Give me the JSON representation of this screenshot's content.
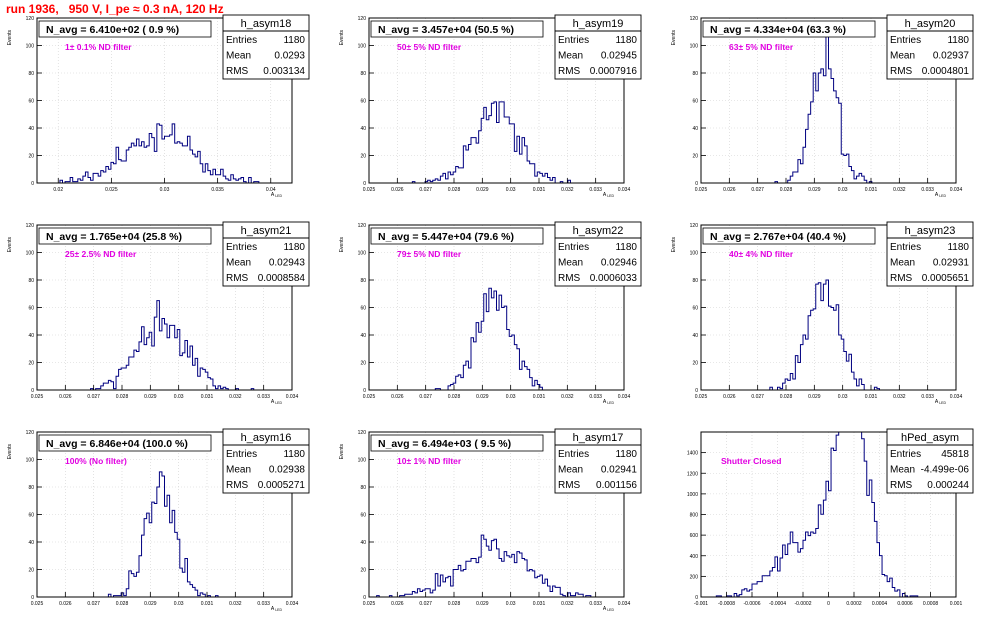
{
  "header": {
    "title": "run 1936,   950 V, I_pe ≈ 0.3 nA, 120 Hz"
  },
  "colors": {
    "title": "#ff0000",
    "hist": "#000080",
    "grid": "#d0d0d0",
    "annotation": "#e100e1"
  },
  "chart_data": [
    {
      "type": "histogram",
      "name": "h_asym18",
      "navg": "N_avg = 6.410e+02 ( 0.9 %)",
      "filter": "1± 0.1% ND filter",
      "stats": {
        "entries": "1180",
        "mean": "0.0293",
        "rms": "0.003134"
      },
      "xlabel": "A_{LED}",
      "ylabel": "Events",
      "xlim": [
        0.018,
        0.042
      ],
      "ylim": [
        0,
        120
      ],
      "yticks": [
        0,
        20,
        40,
        60,
        80,
        100,
        120
      ],
      "xticks": [
        "0.02",
        "0.025",
        "0.03",
        "0.035",
        "0.04"
      ],
      "xtick_values": [
        0.02,
        0.025,
        0.03,
        0.035,
        0.04
      ],
      "dist": {
        "mu": 0.0293,
        "sigma": 0.003134,
        "n": 1180,
        "bins": 100,
        "seed": 18
      }
    },
    {
      "type": "histogram",
      "name": "h_asym19",
      "navg": "N_avg = 3.457e+04 (50.5 %)",
      "filter": "50± 5% ND filter",
      "stats": {
        "entries": "1180",
        "mean": "0.02945",
        "rms": "0.0007916"
      },
      "xlabel": "A_{LED}",
      "ylabel": "Events",
      "xlim": [
        0.025,
        0.034
      ],
      "ylim": [
        0,
        120
      ],
      "yticks": [
        0,
        20,
        40,
        60,
        80,
        100,
        120
      ],
      "xticks": [
        "0.025",
        "0.026",
        "0.027",
        "0.028",
        "0.029",
        "0.03",
        "0.031",
        "0.032",
        "0.033",
        "0.034"
      ],
      "xtick_values": [
        0.025,
        0.026,
        0.027,
        0.028,
        0.029,
        0.03,
        0.031,
        0.032,
        0.033,
        0.034
      ],
      "dist": {
        "mu": 0.02945,
        "sigma": 0.0007916,
        "n": 1180,
        "bins": 100,
        "seed": 19
      }
    },
    {
      "type": "histogram",
      "name": "h_asym20",
      "navg": "N_avg = 4.334e+04 (63.3 %)",
      "filter": "63± 5% ND filter",
      "stats": {
        "entries": "1180",
        "mean": "0.02937",
        "rms": "0.0004801"
      },
      "xlabel": "A_{LED}",
      "ylabel": "Events",
      "xlim": [
        0.025,
        0.034
      ],
      "ylim": [
        0,
        120
      ],
      "yticks": [
        0,
        20,
        40,
        60,
        80,
        100,
        120
      ],
      "xticks": [
        "0.025",
        "0.026",
        "0.027",
        "0.028",
        "0.029",
        "0.03",
        "0.031",
        "0.032",
        "0.033",
        "0.034"
      ],
      "xtick_values": [
        0.025,
        0.026,
        0.027,
        0.028,
        0.029,
        0.03,
        0.031,
        0.032,
        0.033,
        0.034
      ],
      "dist": {
        "mu": 0.02937,
        "sigma": 0.0004801,
        "n": 1180,
        "bins": 100,
        "seed": 20
      }
    },
    {
      "type": "histogram",
      "name": "h_asym21",
      "navg": "N_avg = 1.765e+04 (25.8 %)",
      "filter": "25± 2.5% ND filter",
      "stats": {
        "entries": "1180",
        "mean": "0.02943",
        "rms": "0.0008584"
      },
      "xlabel": "A_{LED}",
      "ylabel": "Events",
      "xlim": [
        0.025,
        0.034
      ],
      "ylim": [
        0,
        120
      ],
      "yticks": [
        0,
        20,
        40,
        60,
        80,
        100,
        120
      ],
      "xticks": [
        "0.025",
        "0.026",
        "0.027",
        "0.028",
        "0.029",
        "0.03",
        "0.031",
        "0.032",
        "0.033",
        "0.034"
      ],
      "xtick_values": [
        0.025,
        0.026,
        0.027,
        0.028,
        0.029,
        0.03,
        0.031,
        0.032,
        0.033,
        0.034
      ],
      "dist": {
        "mu": 0.02943,
        "sigma": 0.0008584,
        "n": 1180,
        "bins": 100,
        "seed": 21
      }
    },
    {
      "type": "histogram",
      "name": "h_asym22",
      "navg": "N_avg = 5.447e+04 (79.6 %)",
      "filter": "79± 5% ND filter",
      "stats": {
        "entries": "1180",
        "mean": "0.02946",
        "rms": "0.0006033"
      },
      "xlabel": "A_{LED}",
      "ylabel": "Events",
      "xlim": [
        0.025,
        0.034
      ],
      "ylim": [
        0,
        120
      ],
      "yticks": [
        0,
        20,
        40,
        60,
        80,
        100,
        120
      ],
      "xticks": [
        "0.025",
        "0.026",
        "0.027",
        "0.028",
        "0.029",
        "0.03",
        "0.031",
        "0.032",
        "0.033",
        "0.034"
      ],
      "xtick_values": [
        0.025,
        0.026,
        0.027,
        0.028,
        0.029,
        0.03,
        0.031,
        0.032,
        0.033,
        0.034
      ],
      "dist": {
        "mu": 0.02946,
        "sigma": 0.0006033,
        "n": 1180,
        "bins": 100,
        "seed": 22
      }
    },
    {
      "type": "histogram",
      "name": "h_asym23",
      "navg": "N_avg = 2.767e+04 (40.4 %)",
      "filter": "40± 4% ND filter",
      "stats": {
        "entries": "1180",
        "mean": "0.02931",
        "rms": "0.0005651"
      },
      "xlabel": "A_{LED}",
      "ylabel": "Events",
      "xlim": [
        0.025,
        0.034
      ],
      "ylim": [
        0,
        120
      ],
      "yticks": [
        0,
        20,
        40,
        60,
        80,
        100,
        120
      ],
      "xticks": [
        "0.025",
        "0.026",
        "0.027",
        "0.028",
        "0.029",
        "0.03",
        "0.031",
        "0.032",
        "0.033",
        "0.034"
      ],
      "xtick_values": [
        0.025,
        0.026,
        0.027,
        0.028,
        0.029,
        0.03,
        0.031,
        0.032,
        0.033,
        0.034
      ],
      "dist": {
        "mu": 0.02931,
        "sigma": 0.0005651,
        "n": 1180,
        "bins": 100,
        "seed": 23
      }
    },
    {
      "type": "histogram",
      "name": "h_asym16",
      "navg": "N_avg = 6.846e+04 (100.0 %)",
      "filter": "100% (No filter)",
      "stats": {
        "entries": "1180",
        "mean": "0.02938",
        "rms": "0.0005271"
      },
      "xlabel": "A_{LED}",
      "ylabel": "Events",
      "xlim": [
        0.025,
        0.034
      ],
      "ylim": [
        0,
        120
      ],
      "yticks": [
        0,
        20,
        40,
        60,
        80,
        100,
        120
      ],
      "xticks": [
        "0.025",
        "0.026",
        "0.027",
        "0.028",
        "0.029",
        "0.03",
        "0.031",
        "0.032",
        "0.033",
        "0.034"
      ],
      "xtick_values": [
        0.025,
        0.026,
        0.027,
        0.028,
        0.029,
        0.03,
        0.031,
        0.032,
        0.033,
        0.034
      ],
      "dist": {
        "mu": 0.02938,
        "sigma": 0.0005271,
        "n": 1180,
        "bins": 100,
        "seed": 16
      }
    },
    {
      "type": "histogram",
      "name": "h_asym17",
      "navg": "N_avg = 6.494e+03 ( 9.5 %)",
      "filter": "10± 1% ND filter",
      "stats": {
        "entries": "1180",
        "mean": "0.02941",
        "rms": "0.001156"
      },
      "xlabel": "A_{LED}",
      "ylabel": "Events",
      "xlim": [
        0.025,
        0.034
      ],
      "ylim": [
        0,
        120
      ],
      "yticks": [
        0,
        20,
        40,
        60,
        80,
        100,
        120
      ],
      "xticks": [
        "0.025",
        "0.026",
        "0.027",
        "0.028",
        "0.029",
        "0.03",
        "0.031",
        "0.032",
        "0.033",
        "0.034"
      ],
      "xtick_values": [
        0.025,
        0.026,
        0.027,
        0.028,
        0.029,
        0.03,
        0.031,
        0.032,
        0.033,
        0.034
      ],
      "dist": {
        "mu": 0.02941,
        "sigma": 0.001156,
        "n": 1180,
        "bins": 100,
        "seed": 17
      }
    },
    {
      "type": "histogram",
      "name": "hPed_asym",
      "navg": "",
      "filter": "Shutter Closed",
      "stats": {
        "entries": "45818",
        "mean": "-4.499e-06",
        "rms": "0.000244"
      },
      "xlabel": "",
      "ylabel": "",
      "xlim": [
        -0.001,
        0.001
      ],
      "ylim": [
        0,
        1600
      ],
      "yticks": [
        0,
        200,
        400,
        600,
        800,
        1000,
        1200,
        1400
      ],
      "xticks": [
        "-0.001",
        "-0.0008",
        "-0.0006",
        "-0.0004",
        "-0.0002",
        "0",
        "0.0002",
        "0.0004",
        "0.0006",
        "0.0008",
        "0.001"
      ],
      "xtick_values": [
        -0.001,
        -0.0008,
        -0.0006,
        -0.0004,
        -0.0002,
        0,
        0.0002,
        0.0004,
        0.0006,
        0.0008,
        0.001
      ],
      "dist": {
        "mu": -4.499e-06,
        "sigma": 0.000244,
        "n": 45818,
        "bins": 100,
        "seed": 99,
        "skew": true
      }
    }
  ]
}
